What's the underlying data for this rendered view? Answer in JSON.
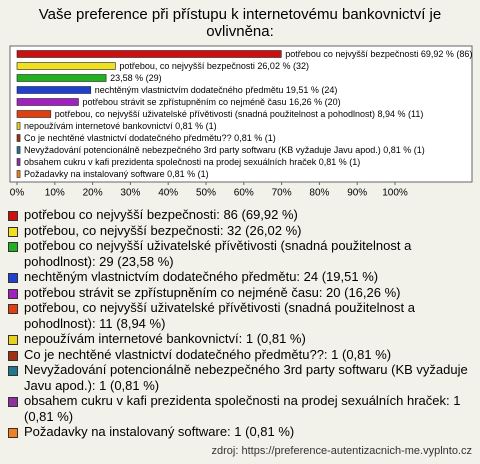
{
  "chart_data": {
    "type": "barh",
    "title": "Vaše preference při přístupu k internetovému bankovnictví je ovlivněna:",
    "values": [
      69.92,
      26.02,
      23.58,
      19.51,
      16.26,
      8.94,
      0.81,
      0.81,
      0.81,
      0.81,
      0.81
    ],
    "value_labels": [
      "potřebou co nejvyšší bezpečnosti 69,92 % (86)",
      "potřebou, co nejvyšší bezpečnosti 26,02 % (32)",
      "23,58 % (29)",
      "nechtěným vlastnictvím dodatečného předmětu 19,51 % (24)",
      "potřebou strávit se zpřístupněním co nejméně času 16,26 % (20)",
      "potřebou, co nejvyšší uživatelské přívětivosti (snadná použitelnost a pohodlnost) 8,94 % (11)",
      "nepoužívám internetové bankovnictví 0,81 % (1)",
      "Co je nechtěné vlastnictví dodatečného předmětu?? 0,81 % (1)",
      "Nevyžadování potencionálně nebezpečného 3rd party softwaru (KB vyžaduje Javu apod.) 0,81 % (1)",
      "obsahem cukru v kafi prezidenta společnosti na prodej sexuálních hraček 0,81 % (1)",
      "Požadavky na instalovaný software 0,81 % (1)"
    ],
    "legend": [
      "potřebou co nejvyšší bezpečnosti: 86 (69,92 %)",
      "potřebou, co nejvyšší bezpečnosti: 32 (26,02 %)",
      "potřebou co nejvyšší uživatelské přívětivosti (snadná použitelnost a pohodlnost): 29 (23,58 %)",
      "nechtěným vlastnictvím dodatečného předmětu: 24 (19,51 %)",
      "potřebou strávit se zpřístupněním co nejméně času: 20 (16,26 %)",
      "potřebou, co nejvyšší uživatelské přívětivosti (snadná použitelnost a pohodlnost): 11 (8,94 %)",
      "nepoužívám internetové bankovnictví: 1 (0,81 %)",
      "Co je nechtěné vlastnictví dodatečného předmětu??: 1 (0,81 %)",
      "Nevyžadování potencionálně nebezpečného 3rd party softwaru (KB vyžaduje Javu apod.): 1 (0,81 %)",
      "obsahem cukru v kafi prezidenta společnosti na prodej sexuálních hraček: 1 (0,81 %)",
      "Požadavky na instalovaný software: 1 (0,81 %)"
    ],
    "colors": [
      "#cc1010",
      "#f0e020",
      "#20b020",
      "#2040d0",
      "#a020c0",
      "#e04010",
      "#e8d020",
      "#a03010",
      "#207890",
      "#9030a0",
      "#f08020"
    ],
    "xlim": [
      0,
      100
    ],
    "xticks": [
      {
        "value": 0,
        "label": "0%"
      },
      {
        "value": 10,
        "label": "10%"
      },
      {
        "value": 20,
        "label": "20%"
      },
      {
        "value": 30,
        "label": "30%"
      },
      {
        "value": 40,
        "label": "40%"
      },
      {
        "value": 50,
        "label": "50%"
      },
      {
        "value": 60,
        "label": "60%"
      },
      {
        "value": 70,
        "label": "70%"
      },
      {
        "value": 80,
        "label": "80%"
      },
      {
        "value": 90,
        "label": "90%"
      },
      {
        "value": 100,
        "label": "100%"
      }
    ],
    "source": "zdroj: https://preference-autentizacnich-me.vyplnto.cz"
  }
}
